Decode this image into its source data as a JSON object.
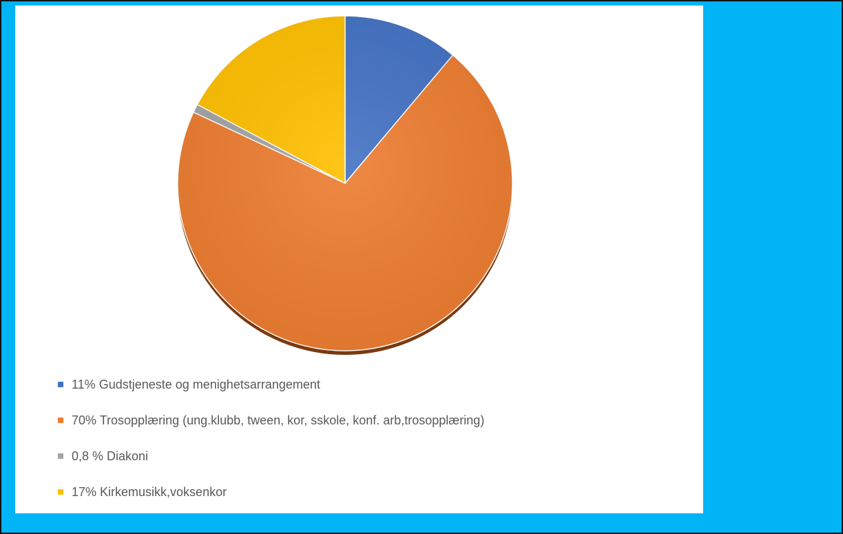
{
  "chart_data": {
    "type": "pie",
    "slices": [
      {
        "label": "11% Gudstjeneste og menighetsarrangement",
        "value": 11,
        "color": "#4472c4"
      },
      {
        "label": "70% Trosopplæring (ung.klubb, tween, kor, sskole, konf. arb,trosopplæring)",
        "value": 70,
        "color": "#ed7d31"
      },
      {
        "label": "0,8 % Diakoni",
        "value": 0.8,
        "color": "#a5a5a5"
      },
      {
        "label": "17% Kirkemusikk,voksenkor",
        "value": 17,
        "color": "#ffc000"
      }
    ],
    "legend_position": "bottom-left"
  },
  "colors": {
    "background": "#00b4f5",
    "panel": "#ffffff"
  }
}
